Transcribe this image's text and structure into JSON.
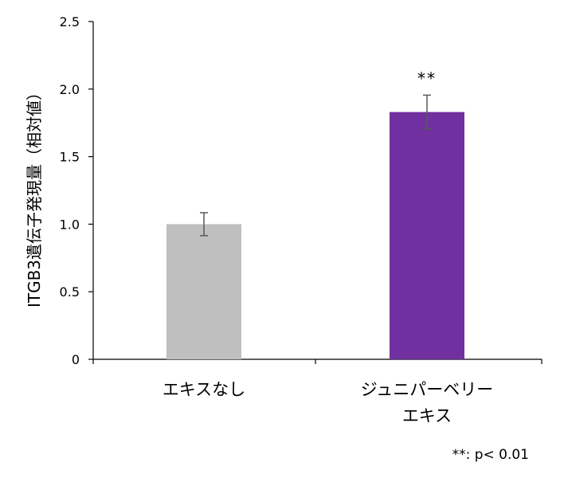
{
  "chart_data": {
    "type": "bar",
    "ylabel": "ITGB3遺伝子発現量（相対値）",
    "xlabel": "",
    "ylim": [
      0,
      2.5
    ],
    "yticks": [
      "0",
      "0.5",
      "1.0",
      "1.5",
      "2.0",
      "2.5"
    ],
    "ytick_values": [
      0,
      0.5,
      1.0,
      1.5,
      2.0,
      2.5
    ],
    "categories": [
      {
        "lines": [
          "エキスなし"
        ]
      },
      {
        "lines": [
          "ジュニパーベリー",
          "エキス"
        ]
      }
    ],
    "values": [
      1.0,
      1.83
    ],
    "errors": [
      0.085,
      0.125
    ],
    "colors": [
      "#bfbfbf",
      "#7030a0"
    ],
    "error_bar_color": "#595959",
    "significance": [
      "",
      "**"
    ],
    "footnote": "**: p< 0.01",
    "grid": false,
    "legend": "none"
  }
}
